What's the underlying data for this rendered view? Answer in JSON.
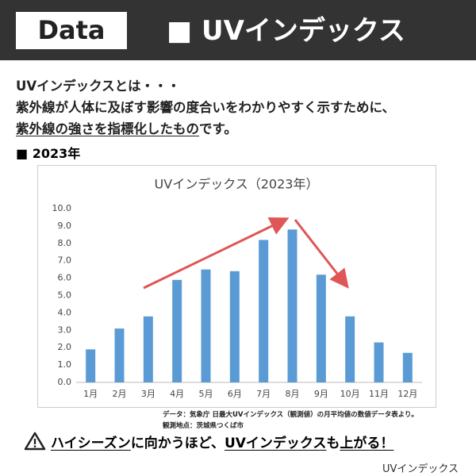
{
  "header": {
    "badge": "Data",
    "title": "■ UVインデックス"
  },
  "intro": {
    "lines": [
      "UVインデックスとは・・・",
      "紫外線が人体に及ぼす影響の度合いをわかりやすく示すために、"
    ],
    "underlined": "紫外線の強さを指標化したもの",
    "tail": "です。"
  },
  "section": "■ 2023年",
  "chart_data": {
    "type": "bar",
    "title": "UVインデックス（2023年）",
    "categories": [
      "1月",
      "2月",
      "3月",
      "4月",
      "5月",
      "6月",
      "7月",
      "8月",
      "9月",
      "10月",
      "11月",
      "12月"
    ],
    "values": [
      1.9,
      3.1,
      3.8,
      5.9,
      6.5,
      6.4,
      8.2,
      8.8,
      6.2,
      3.8,
      2.3,
      1.7
    ],
    "color": "#5b9bd5",
    "ylim": [
      0,
      10
    ],
    "yticks": [
      {
        "value": 0,
        "label": "0.0"
      },
      {
        "value": 1,
        "label": "1.0"
      },
      {
        "value": 2,
        "label": "2.0"
      },
      {
        "value": 3,
        "label": "3.0"
      },
      {
        "value": 4,
        "label": "4.0"
      },
      {
        "value": 5,
        "label": "5.0"
      },
      {
        "value": 6,
        "label": "6.0"
      },
      {
        "value": 7,
        "label": "7.0"
      },
      {
        "value": 8,
        "label": "8.0"
      },
      {
        "value": 9,
        "label": "9.0"
      },
      {
        "value": 10,
        "label": "10.0"
      }
    ],
    "grid": false,
    "source": [
      "データ：気象庁 日最大UVインデックス（観測値）の月平均値の数値データ表より。",
      "観測地点：茨城県つくば市"
    ]
  },
  "warning": {
    "parts": [
      {
        "text": "ハイシーズン",
        "underline": true
      },
      {
        "text": "に向かうほど、",
        "underline": false
      },
      {
        "text": "UVインデックス",
        "underline": true
      },
      {
        "text": "も",
        "underline": false
      },
      {
        "text": "上がる！",
        "underline": true
      }
    ]
  },
  "caption": "UVインデックス"
}
